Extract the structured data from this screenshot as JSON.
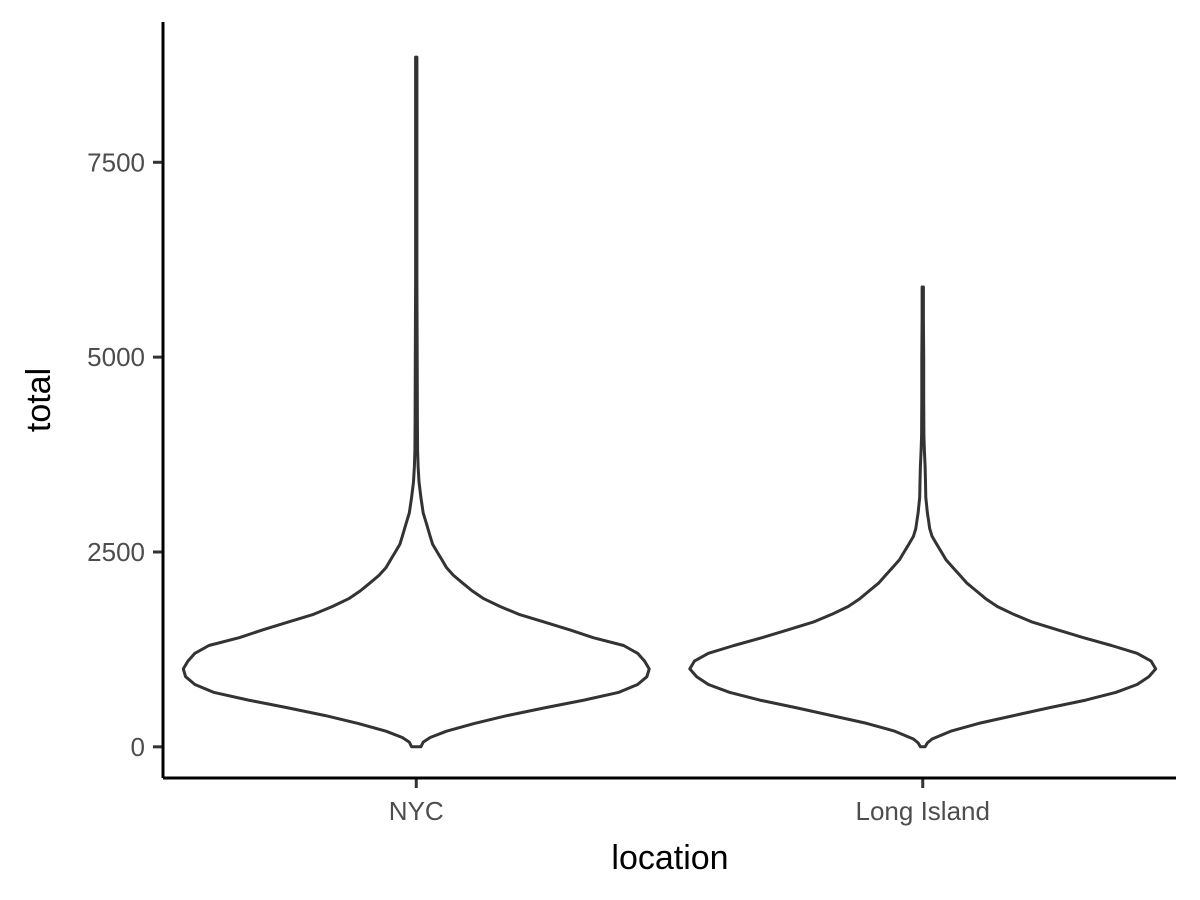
{
  "chart_data": {
    "type": "violin",
    "title": "",
    "xlabel": "location",
    "ylabel": "total",
    "categories": [
      "NYC",
      "Long Island"
    ],
    "ylim": [
      -400,
      9300
    ],
    "yticks": [
      0,
      2500,
      5000,
      7500
    ],
    "grid": false,
    "legend": "none",
    "series": [
      {
        "category": "NYC",
        "density_profile": [
          [
            0,
            0.02
          ],
          [
            60,
            0.03
          ],
          [
            120,
            0.06
          ],
          [
            200,
            0.13
          ],
          [
            300,
            0.25
          ],
          [
            400,
            0.39
          ],
          [
            500,
            0.55
          ],
          [
            600,
            0.72
          ],
          [
            700,
            0.87
          ],
          [
            800,
            0.95
          ],
          [
            900,
            0.99
          ],
          [
            1000,
            1.0
          ],
          [
            1100,
            0.98
          ],
          [
            1200,
            0.95
          ],
          [
            1300,
            0.89
          ],
          [
            1400,
            0.76
          ],
          [
            1500,
            0.66
          ],
          [
            1600,
            0.55
          ],
          [
            1700,
            0.44
          ],
          [
            1800,
            0.36
          ],
          [
            1900,
            0.29
          ],
          [
            2000,
            0.24
          ],
          [
            2100,
            0.2
          ],
          [
            2200,
            0.16
          ],
          [
            2300,
            0.13
          ],
          [
            2400,
            0.11
          ],
          [
            2500,
            0.09
          ],
          [
            2600,
            0.07
          ],
          [
            2700,
            0.06
          ],
          [
            2800,
            0.05
          ],
          [
            2900,
            0.04
          ],
          [
            3000,
            0.03
          ],
          [
            3200,
            0.02
          ],
          [
            3400,
            0.012
          ],
          [
            3600,
            0.008
          ],
          [
            3800,
            0.006
          ],
          [
            4200,
            0.005
          ],
          [
            5000,
            0.004
          ],
          [
            6000,
            0.003
          ],
          [
            7000,
            0.003
          ],
          [
            8000,
            0.003
          ],
          [
            8850,
            0.003
          ]
        ]
      },
      {
        "category": "Long Island",
        "density_profile": [
          [
            0,
            0.01
          ],
          [
            50,
            0.02
          ],
          [
            100,
            0.04
          ],
          [
            200,
            0.12
          ],
          [
            300,
            0.24
          ],
          [
            400,
            0.39
          ],
          [
            500,
            0.54
          ],
          [
            600,
            0.7
          ],
          [
            700,
            0.83
          ],
          [
            800,
            0.92
          ],
          [
            900,
            0.97
          ],
          [
            1000,
            1.0
          ],
          [
            1100,
            0.98
          ],
          [
            1200,
            0.92
          ],
          [
            1300,
            0.81
          ],
          [
            1400,
            0.69
          ],
          [
            1500,
            0.58
          ],
          [
            1600,
            0.47
          ],
          [
            1700,
            0.39
          ],
          [
            1800,
            0.32
          ],
          [
            1900,
            0.27
          ],
          [
            2000,
            0.23
          ],
          [
            2100,
            0.19
          ],
          [
            2200,
            0.16
          ],
          [
            2300,
            0.13
          ],
          [
            2400,
            0.1
          ],
          [
            2500,
            0.08
          ],
          [
            2600,
            0.06
          ],
          [
            2700,
            0.04
          ],
          [
            2800,
            0.03
          ],
          [
            2900,
            0.025
          ],
          [
            3000,
            0.02
          ],
          [
            3200,
            0.013
          ],
          [
            3400,
            0.012
          ],
          [
            3600,
            0.01
          ],
          [
            3800,
            0.007
          ],
          [
            4000,
            0.005
          ],
          [
            4500,
            0.004
          ],
          [
            5000,
            0.004
          ],
          [
            5500,
            0.003
          ],
          [
            5900,
            0.003
          ]
        ]
      }
    ]
  }
}
